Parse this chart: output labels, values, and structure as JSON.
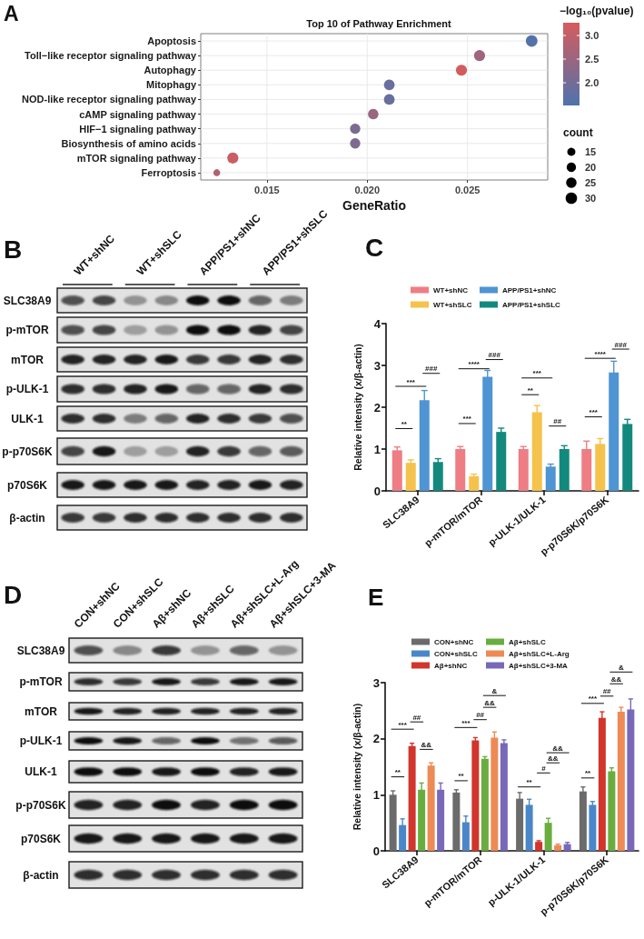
{
  "chart_data": [
    {
      "type": "bubble",
      "orientation": "horizontal",
      "title": "Top 10 of Pathway Enrichment",
      "xlabel": "GeneRatio",
      "clabel": "−log₁₀(pvalue)",
      "legend_title": "count",
      "categories": [
        "Apoptosis",
        "Toll−like receptor signaling pathway",
        "Autophagy",
        "Mitophagy",
        "NOD-like receptor signaling pathway",
        "cAMP signaling pathway",
        "HIF−1 signaling pathway",
        "Biosynthesis of amino acids",
        "mTOR signaling pathway",
        "Ferroptosis"
      ],
      "values": [
        0.0282,
        0.0256,
        0.0247,
        0.0211,
        0.0211,
        0.0203,
        0.0194,
        0.0194,
        0.0133,
        0.0125
      ],
      "sizes": [
        31,
        28,
        28,
        26,
        26,
        25,
        24,
        24,
        28,
        11
      ],
      "cvalues": [
        1.6,
        2.55,
        3.2,
        1.85,
        1.85,
        2.5,
        2.1,
        2.15,
        3.1,
        2.8
      ],
      "size_legend": [
        15,
        20,
        25,
        30
      ],
      "clim": [
        1.52,
        3.27
      ],
      "cticks": [
        {
          "value": 2,
          "label": "2.0"
        },
        {
          "value": 2.5,
          "label": "2.5"
        },
        {
          "value": 3,
          "label": "3.0"
        }
      ],
      "xlim": [
        0.0117,
        0.029
      ],
      "xticks": [
        0.015,
        {
          "value": 0.02,
          "label": "0.020"
        },
        0.025
      ],
      "grid": true,
      "annotations": [
        "A"
      ]
    },
    {
      "type": "other",
      "categories": [
        "WT+shNC",
        "WT+shSLC",
        "APP/PS1+shNC",
        "APP/PS1+shSLC"
      ],
      "y_categories": [
        "SLC38A9",
        "p-mTOR",
        "mTOR",
        "p-ULK-1",
        "ULK-1",
        "p-p70S6K",
        "p70S6K",
        "β-actin"
      ],
      "annotations": [
        "B"
      ]
    },
    {
      "type": "bar",
      "ylabel": "Relative intensity (x/β-actin)",
      "categories": [
        "SLC38A9",
        "p-mTOR/mTOR",
        "p-ULK-1/ULK-1",
        "p-p70S6K/p70S6K"
      ],
      "series": [
        {
          "name": "WT+shNC",
          "color": "#ee7d84",
          "values": [
            0.97,
            1.0,
            1.0,
            1.0
          ],
          "errors": [
            0.08,
            0.06,
            0.06,
            0.19
          ]
        },
        {
          "name": "WT+shSLC",
          "color": "#f5c24c",
          "values": [
            0.67,
            0.35,
            1.88,
            1.12
          ],
          "errors": [
            0.07,
            0.05,
            0.16,
            0.13
          ]
        },
        {
          "name": "APP/PS1+shNC",
          "color": "#4f94d3",
          "values": [
            2.17,
            2.73,
            0.58,
            2.83
          ],
          "errors": [
            0.23,
            0.15,
            0.06,
            0.27
          ]
        },
        {
          "name": "APP/PS1+shSLC",
          "color": "#13897d",
          "values": [
            0.69,
            1.41,
            1.0,
            1.6
          ],
          "errors": [
            0.08,
            0.09,
            0.08,
            0.11
          ]
        }
      ],
      "ylim": [
        0,
        4
      ],
      "yticks": [
        0,
        1,
        2,
        3,
        4
      ],
      "legend": "top",
      "annotations": [
        "C",
        "**",
        "***",
        "###",
        "***",
        "****",
        "###",
        "**",
        "***",
        "##",
        "***",
        "****",
        "###"
      ]
    },
    {
      "type": "other",
      "categories": [
        "CON+shNC",
        "CON+shSLC",
        "Aβ+shNC",
        "Aβ+shSLC",
        "Aβ+shSLC+L-Arg",
        "Aβ+shSLC+3-MA"
      ],
      "y_categories": [
        "SLC38A9",
        "p-mTOR",
        "mTOR",
        "p-ULK-1",
        "ULK-1",
        "p-p70S6K",
        "p70S6K",
        "β-actin"
      ],
      "annotations": [
        "D"
      ]
    },
    {
      "type": "bar",
      "ylabel": "Relative intensity (x/β-actin)",
      "categories": [
        "SLC38A9",
        "p-mTOR/mTOR",
        "p-ULK-1/ULK-1",
        "p-p70S6K/p70S6K"
      ],
      "series": [
        {
          "name": "CON+shNC",
          "color": "#6b6b6b",
          "values": [
            1.0,
            1.04,
            0.93,
            1.06
          ],
          "errors": [
            0.07,
            0.05,
            0.11,
            0.08
          ]
        },
        {
          "name": "CON+shSLC",
          "color": "#4a87c8",
          "values": [
            0.46,
            0.51,
            0.82,
            0.82
          ],
          "errors": [
            0.11,
            0.11,
            0.1,
            0.06
          ]
        },
        {
          "name": "Aβ+shNC",
          "color": "#d1352c",
          "values": [
            1.87,
            1.97,
            0.16,
            2.37
          ],
          "errors": [
            0.05,
            0.05,
            0.02,
            0.11
          ]
        },
        {
          "name": "Aβ+shSLC",
          "color": "#69ad3e",
          "values": [
            1.09,
            1.64,
            0.5,
            1.42
          ],
          "errors": [
            0.12,
            0.04,
            0.08,
            0.06
          ]
        },
        {
          "name": "Aβ+shSLC+L-Arg",
          "color": "#ee8a55",
          "values": [
            1.52,
            2.02,
            0.1,
            2.48
          ],
          "errors": [
            0.05,
            0.1,
            0.02,
            0.08
          ]
        },
        {
          "name": "Aβ+shSLC+3-MA",
          "color": "#7868b8",
          "values": [
            1.09,
            1.92,
            0.12,
            2.52
          ],
          "errors": [
            0.12,
            0.06,
            0.03,
            0.19
          ]
        }
      ],
      "ylim": [
        0,
        3
      ],
      "yticks": [
        0,
        1,
        2,
        3
      ],
      "legend": "top",
      "annotations": [
        "E",
        "**",
        "***",
        "##",
        "&&",
        "**",
        "***",
        "##",
        "&&",
        "&",
        "**",
        "#",
        "&&",
        "&&",
        "**",
        "***",
        "##",
        "&&",
        "&"
      ]
    }
  ]
}
